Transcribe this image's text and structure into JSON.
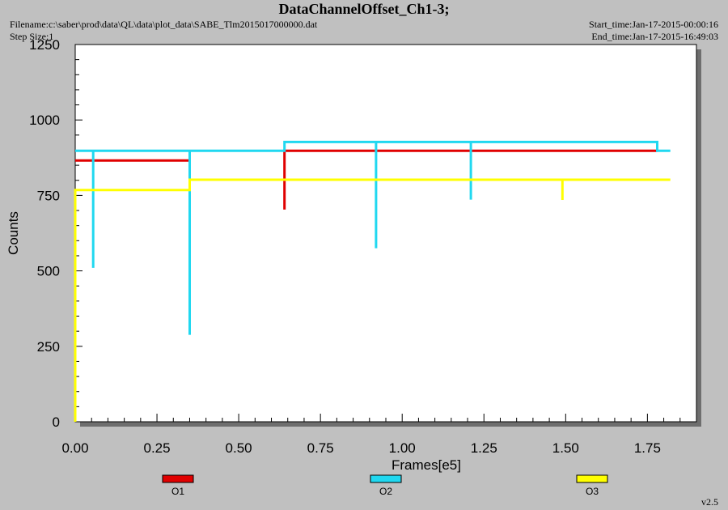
{
  "header": {
    "title": "DataChannelOffset_Ch1-3;",
    "filename": "Filename:c:\\saber\\prod\\data\\QL\\data\\plot_data\\SABE_Tlm2015017000000.dat",
    "step_size": "Step Size:1",
    "start_time": "Start_time:Jan-17-2015-00:00:16",
    "end_time": "End_time:Jan-17-2015-16:49:03"
  },
  "version": "v2.5",
  "chart_data": {
    "type": "line",
    "title": "DataChannelOffset_Ch1-3;",
    "xlabel": "Frames[e5]",
    "ylabel": "Counts",
    "xlim": [
      0.0,
      1.9
    ],
    "ylim": [
      0,
      1250
    ],
    "x_ticks": [
      "0.00",
      "0.25",
      "0.50",
      "0.75",
      "1.00",
      "1.25",
      "1.50",
      "1.75"
    ],
    "y_ticks": [
      "0",
      "250",
      "500",
      "750",
      "1000",
      "1250"
    ],
    "grid": false,
    "legend_position": "bottom",
    "series": [
      {
        "name": "O1",
        "color": "#e00000",
        "x": [
          0.0,
          0.35,
          0.35,
          0.64,
          0.64,
          0.64,
          1.78
        ],
        "y": [
          866,
          866,
          null,
          703,
          898,
          898,
          898
        ]
      },
      {
        "name": "O2",
        "color": "#20d8f0",
        "x": [
          0.0,
          0.055,
          0.055,
          0.055,
          0.35,
          0.35,
          0.35,
          0.64,
          0.64,
          0.92,
          0.92,
          0.92,
          1.21,
          1.21,
          1.21,
          1.78,
          1.78,
          1.82
        ],
        "y": [
          898,
          898,
          510,
          898,
          898,
          288,
          898,
          898,
          927,
          927,
          575,
          927,
          927,
          736,
          927,
          927,
          898,
          898
        ]
      },
      {
        "name": "O3",
        "color": "#ffff00",
        "x": [
          0.0,
          0.0,
          0.35,
          0.35,
          1.49,
          1.49,
          1.49,
          1.82
        ],
        "y": [
          0,
          768,
          768,
          802,
          802,
          735,
          802,
          802
        ]
      }
    ]
  }
}
